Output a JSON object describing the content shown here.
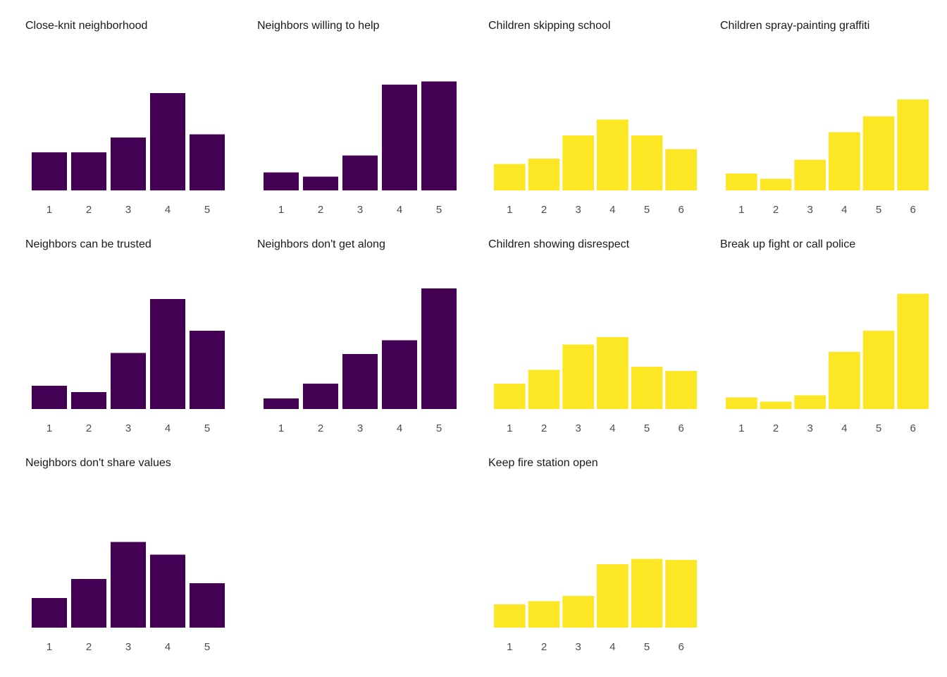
{
  "palette": {
    "purple": "#440154",
    "yellow": "#FDE725"
  },
  "chart_data": [
    {
      "type": "bar",
      "title": "Close-knit neighborhood",
      "color": "#440154",
      "categories": [
        "1",
        "2",
        "3",
        "4",
        "5"
      ],
      "values": [
        36,
        36,
        50,
        92,
        53
      ],
      "ylim": [
        0,
        110
      ],
      "grid": false,
      "y_axis_shown": false
    },
    {
      "type": "bar",
      "title": "Neighbors willing to help",
      "color": "#440154",
      "categories": [
        "1",
        "2",
        "3",
        "4",
        "5"
      ],
      "values": [
        17,
        13,
        33,
        100,
        103
      ],
      "ylim": [
        0,
        110
      ],
      "grid": false,
      "y_axis_shown": false
    },
    {
      "type": "bar",
      "title": "Children skipping school",
      "color": "#FDE725",
      "categories": [
        "1",
        "2",
        "3",
        "4",
        "5",
        "6"
      ],
      "values": [
        25,
        30,
        52,
        67,
        52,
        39
      ],
      "ylim": [
        0,
        110
      ],
      "grid": false,
      "y_axis_shown": false
    },
    {
      "type": "bar",
      "title": "Children spray-painting graffiti",
      "color": "#FDE725",
      "categories": [
        "1",
        "2",
        "3",
        "4",
        "5",
        "6"
      ],
      "values": [
        16,
        11,
        29,
        55,
        70,
        86
      ],
      "ylim": [
        0,
        110
      ],
      "grid": false,
      "y_axis_shown": false
    },
    {
      "type": "bar",
      "title": "Neighbors can be trusted",
      "color": "#440154",
      "categories": [
        "1",
        "2",
        "3",
        "4",
        "5"
      ],
      "values": [
        22,
        16,
        53,
        104,
        74
      ],
      "ylim": [
        0,
        110
      ],
      "grid": false,
      "y_axis_shown": false
    },
    {
      "type": "bar",
      "title": "Neighbors don't get along",
      "color": "#440154",
      "categories": [
        "1",
        "2",
        "3",
        "4",
        "5"
      ],
      "values": [
        10,
        24,
        52,
        65,
        114
      ],
      "ylim": [
        0,
        120
      ],
      "grid": false,
      "y_axis_shown": false
    },
    {
      "type": "bar",
      "title": "Children showing disrespect",
      "color": "#FDE725",
      "categories": [
        "1",
        "2",
        "3",
        "4",
        "5",
        "6"
      ],
      "values": [
        24,
        37,
        61,
        68,
        40,
        36
      ],
      "ylim": [
        0,
        110
      ],
      "grid": false,
      "y_axis_shown": false
    },
    {
      "type": "bar",
      "title": "Break up fight or call police",
      "color": "#FDE725",
      "categories": [
        "1",
        "2",
        "3",
        "4",
        "5",
        "6"
      ],
      "values": [
        11,
        7,
        13,
        54,
        74,
        109
      ],
      "ylim": [
        0,
        120
      ],
      "grid": false,
      "y_axis_shown": false
    },
    {
      "type": "bar",
      "title": "Neighbors don't share values",
      "color": "#440154",
      "categories": [
        "1",
        "2",
        "3",
        "4",
        "5"
      ],
      "values": [
        28,
        46,
        81,
        69,
        42
      ],
      "ylim": [
        0,
        110
      ],
      "grid": false,
      "y_axis_shown": false
    },
    null,
    {
      "type": "bar",
      "title": "Keep fire station open",
      "color": "#FDE725",
      "categories": [
        "1",
        "2",
        "3",
        "4",
        "5",
        "6"
      ],
      "values": [
        22,
        25,
        30,
        60,
        65,
        64
      ],
      "ylim": [
        0,
        110
      ],
      "grid": false,
      "y_axis_shown": false
    }
  ]
}
